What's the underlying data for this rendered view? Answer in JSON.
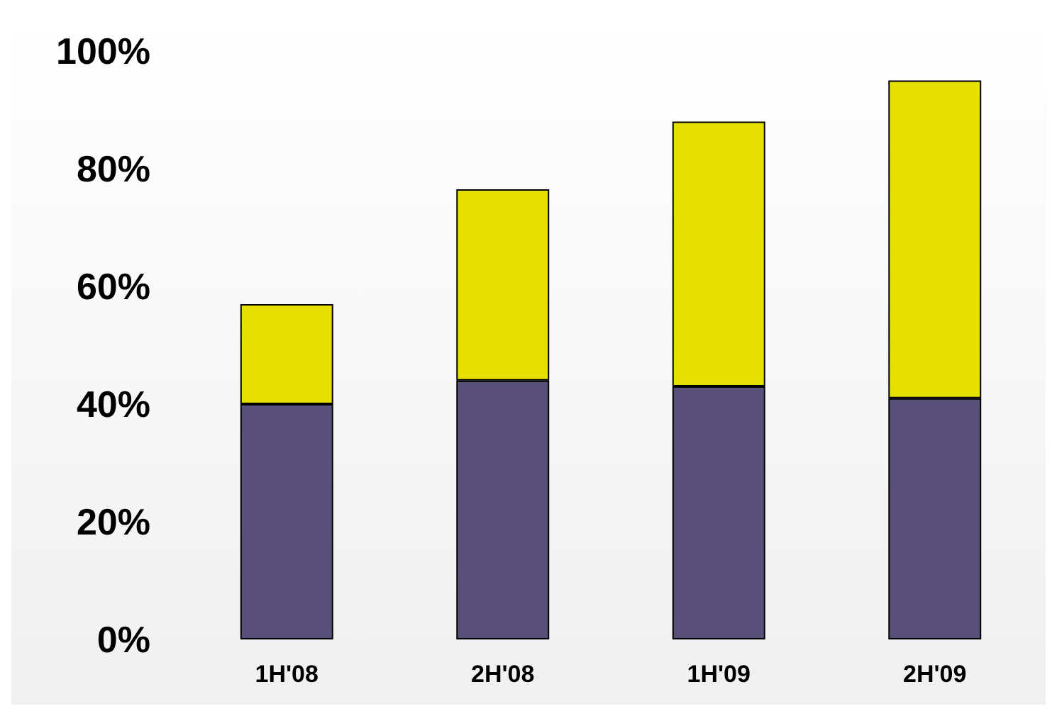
{
  "chart_data": {
    "type": "bar",
    "stacked": true,
    "categories": [
      "1H'08",
      "2H'08",
      "1H'09",
      "2H'09"
    ],
    "series": [
      {
        "color": "#585078",
        "values": [
          40,
          44,
          43,
          41
        ]
      },
      {
        "color": "#e6e000",
        "values": [
          17,
          32.5,
          45,
          54
        ]
      }
    ],
    "ylim": [
      0,
      100
    ],
    "yticks": [
      {
        "value": 0,
        "label": "0%"
      },
      {
        "value": 20,
        "label": "20%"
      },
      {
        "value": 40,
        "label": "40%"
      },
      {
        "value": 60,
        "label": "60%"
      },
      {
        "value": 80,
        "label": "80%"
      },
      {
        "value": 100,
        "label": "100%"
      }
    ],
    "grid": false
  }
}
